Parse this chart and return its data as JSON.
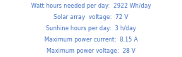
{
  "lines": [
    "Watt hours needed per day:  2922 Wh/day",
    "Solar array  voltage:  72 V",
    "Sunhine hours per day:  3 h/day",
    "Maximum power current:  8.15 A",
    "Maximum power voltage:  28 V"
  ],
  "text_color": "#4472c4",
  "background_color": "#ffffff",
  "fontsize": 5.8,
  "font_family": "DejaVu Sans"
}
